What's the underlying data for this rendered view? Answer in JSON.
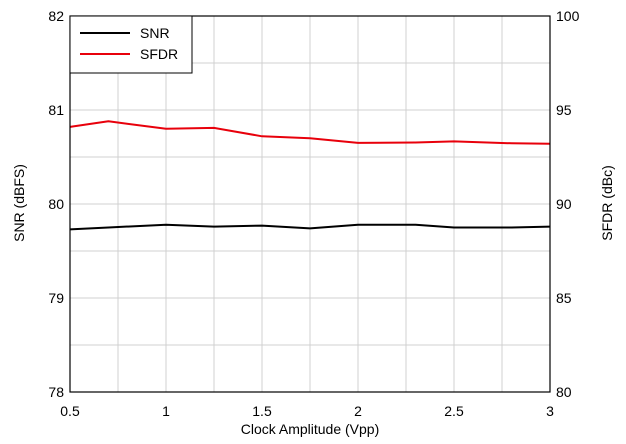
{
  "chart_data": {
    "type": "line",
    "xlabel": "Clock Amplitude (Vpp)",
    "ylabel_left": "SNR (dBFS)",
    "ylabel_right": "SFDR (dBc)",
    "xlim": [
      0.5,
      3
    ],
    "ylim_left": [
      78,
      82
    ],
    "ylim_right": [
      80,
      100
    ],
    "x_ticks": [
      "0.5",
      "1",
      "1.5",
      "2",
      "2.5",
      "3"
    ],
    "y_ticks_left": [
      "78",
      "79",
      "80",
      "81",
      "82"
    ],
    "y_ticks_right": [
      "80",
      "85",
      "90",
      "95",
      "100"
    ],
    "grid": true,
    "legend": "top-left",
    "series": [
      {
        "name": "SNR",
        "axis": "left",
        "color": "#000000",
        "x": [
          0.5,
          0.7,
          1.0,
          1.25,
          1.5,
          1.75,
          2.0,
          2.3,
          2.5,
          2.8,
          3.0
        ],
        "y": [
          79.73,
          79.75,
          79.78,
          79.76,
          79.77,
          79.74,
          79.78,
          79.78,
          79.75,
          79.75,
          79.76
        ]
      },
      {
        "name": "SFDR",
        "axis": "right",
        "color": "#e8000b",
        "x": [
          0.5,
          0.7,
          1.0,
          1.25,
          1.5,
          1.75,
          2.0,
          2.3,
          2.5,
          2.8,
          3.0
        ],
        "y": [
          94.1,
          94.4,
          94.0,
          94.05,
          93.6,
          93.5,
          93.25,
          93.27,
          93.33,
          93.23,
          93.2
        ]
      }
    ]
  }
}
